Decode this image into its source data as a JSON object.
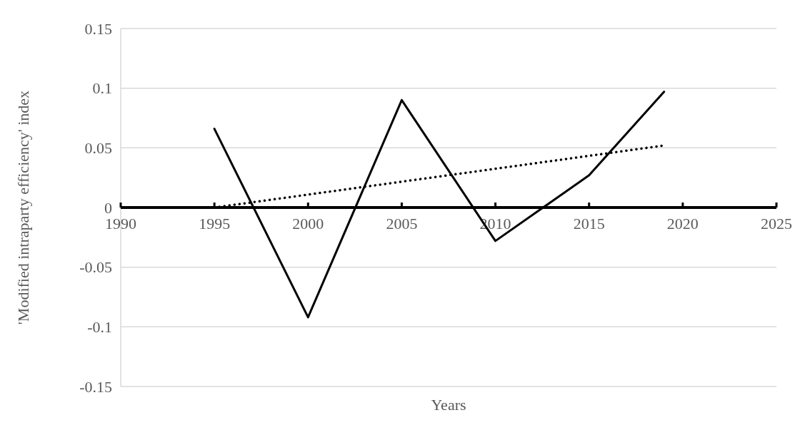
{
  "chart_data": {
    "type": "line",
    "xlabel": "Years",
    "ylabel": "'Modified intraparty efficiency' index",
    "xlim": [
      1990,
      2025
    ],
    "xticks": [
      1990,
      1995,
      2000,
      2005,
      2010,
      2015,
      2020,
      2025
    ],
    "ylim": [
      -0.15,
      0.15
    ],
    "yticks": [
      -0.15,
      -0.1,
      -0.05,
      0,
      0.05,
      0.1,
      0.15
    ],
    "grid": "y",
    "marker": "none",
    "series": [
      {
        "color": "#000000",
        "x": [
          1995,
          2000,
          2005,
          2010,
          2015,
          2019
        ],
        "values": [
          0.066,
          -0.092,
          0.09,
          -0.028,
          0.027,
          0.097
        ],
        "line_style": "solid"
      },
      {
        "color": "#000000",
        "x": [
          1995,
          2019
        ],
        "values": [
          0,
          0.052
        ],
        "line_style": "dotted"
      }
    ]
  }
}
